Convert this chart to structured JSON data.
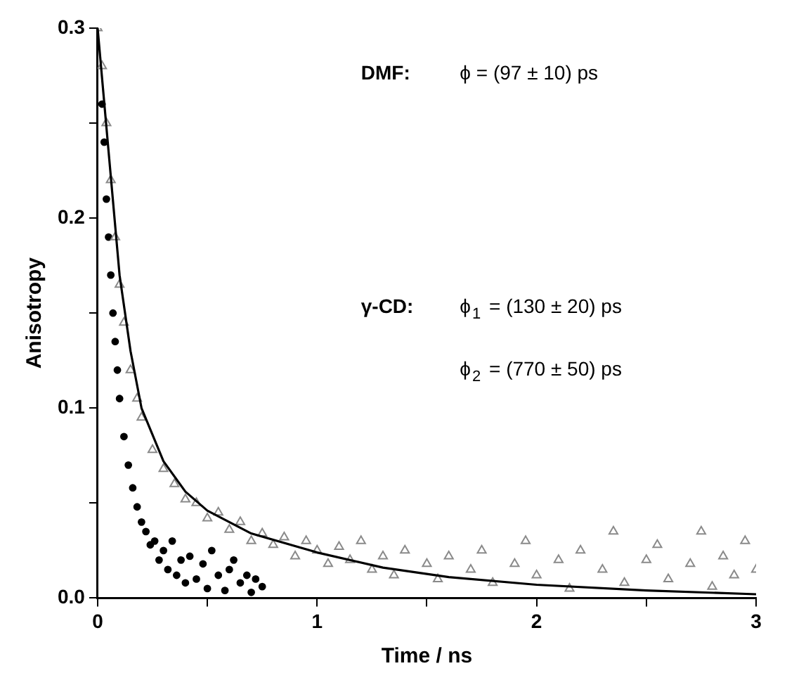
{
  "chart_data": {
    "type": "scatter",
    "xlabel": "Time / ns",
    "ylabel": "Anisotropy",
    "xlim": [
      0,
      3
    ],
    "ylim": [
      0,
      0.3
    ],
    "xticks": [
      0,
      {
        "value": 0.5,
        "label": null
      },
      1,
      {
        "value": 1.5,
        "label": null
      },
      2,
      {
        "value": 2.5,
        "label": null
      },
      3
    ],
    "yticks": [
      {
        "value": 0,
        "label": "0.0"
      },
      {
        "value": 0.05,
        "label": null
      },
      0.1,
      {
        "value": 0.15,
        "label": null
      },
      0.2,
      {
        "value": 0.25,
        "label": null
      },
      0.3
    ],
    "grid": false,
    "legend": false,
    "annotations": [
      "DMF:",
      "ϕ = (97 ± 10) ps",
      "γ-CD:",
      "ϕ$_{1}$ = (130 ± 20) ps",
      "ϕ$_{2}$ = (770 ± 50) ps"
    ],
    "series": [
      {
        "type": "scatter",
        "marker": "triangle",
        "color": "#8a8a8a",
        "x": [
          0,
          0.02,
          0.04,
          0.06,
          0.08,
          0.1,
          0.12,
          0.15,
          0.18,
          0.2,
          0.25,
          0.3,
          0.35,
          0.4,
          0.45,
          0.5,
          0.55,
          0.6,
          0.65,
          0.7,
          0.75,
          0.8,
          0.85,
          0.9,
          0.95,
          1.0,
          1.05,
          1.1,
          1.15,
          1.2,
          1.25,
          1.3,
          1.35,
          1.4,
          1.5,
          1.55,
          1.6,
          1.7,
          1.75,
          1.8,
          1.9,
          1.95,
          2.0,
          2.1,
          2.15,
          2.2,
          2.3,
          2.35,
          2.4,
          2.5,
          2.55,
          2.6,
          2.7,
          2.75,
          2.8,
          2.85,
          2.9,
          2.95,
          3.0
        ],
        "values": [
          0.3,
          0.28,
          0.25,
          0.22,
          0.19,
          0.165,
          0.145,
          0.12,
          0.105,
          0.095,
          0.078,
          0.068,
          0.06,
          0.052,
          0.05,
          0.042,
          0.045,
          0.036,
          0.04,
          0.03,
          0.034,
          0.028,
          0.032,
          0.022,
          0.03,
          0.025,
          0.018,
          0.027,
          0.02,
          0.03,
          0.015,
          0.022,
          0.012,
          0.025,
          0.018,
          0.01,
          0.022,
          0.015,
          0.025,
          0.008,
          0.018,
          0.03,
          0.012,
          0.02,
          0.005,
          0.025,
          0.015,
          0.035,
          0.008,
          0.02,
          0.028,
          0.01,
          0.018,
          0.035,
          0.006,
          0.022,
          0.012,
          0.03,
          0.015
        ]
      },
      {
        "type": "scatter",
        "marker": "circle",
        "color": "#000000",
        "x": [
          0.02,
          0.03,
          0.04,
          0.05,
          0.06,
          0.07,
          0.08,
          0.09,
          0.1,
          0.12,
          0.14,
          0.16,
          0.18,
          0.2,
          0.22,
          0.24,
          0.26,
          0.28,
          0.3,
          0.32,
          0.34,
          0.36,
          0.38,
          0.4,
          0.42,
          0.45,
          0.48,
          0.5,
          0.52,
          0.55,
          0.58,
          0.6,
          0.62,
          0.65,
          0.68,
          0.7,
          0.72,
          0.75
        ],
        "values": [
          0.26,
          0.24,
          0.21,
          0.19,
          0.17,
          0.15,
          0.135,
          0.12,
          0.105,
          0.085,
          0.07,
          0.058,
          0.048,
          0.04,
          0.035,
          0.028,
          0.03,
          0.02,
          0.025,
          0.015,
          0.03,
          0.012,
          0.02,
          0.008,
          0.022,
          0.01,
          0.018,
          0.005,
          0.025,
          0.012,
          0.004,
          0.015,
          0.02,
          0.008,
          0.012,
          0.003,
          0.01,
          0.006
        ]
      },
      {
        "type": "line",
        "marker": "none",
        "line_style": "solid",
        "color": "#000000",
        "x": [
          0,
          0.05,
          0.1,
          0.15,
          0.2,
          0.3,
          0.4,
          0.5,
          0.7,
          1.0,
          1.3,
          1.6,
          2.0,
          2.5,
          3.0
        ],
        "values": [
          0.3,
          0.235,
          0.17,
          0.13,
          0.1,
          0.072,
          0.056,
          0.046,
          0.034,
          0.024,
          0.016,
          0.011,
          0.007,
          0.004,
          0.002
        ]
      }
    ]
  }
}
